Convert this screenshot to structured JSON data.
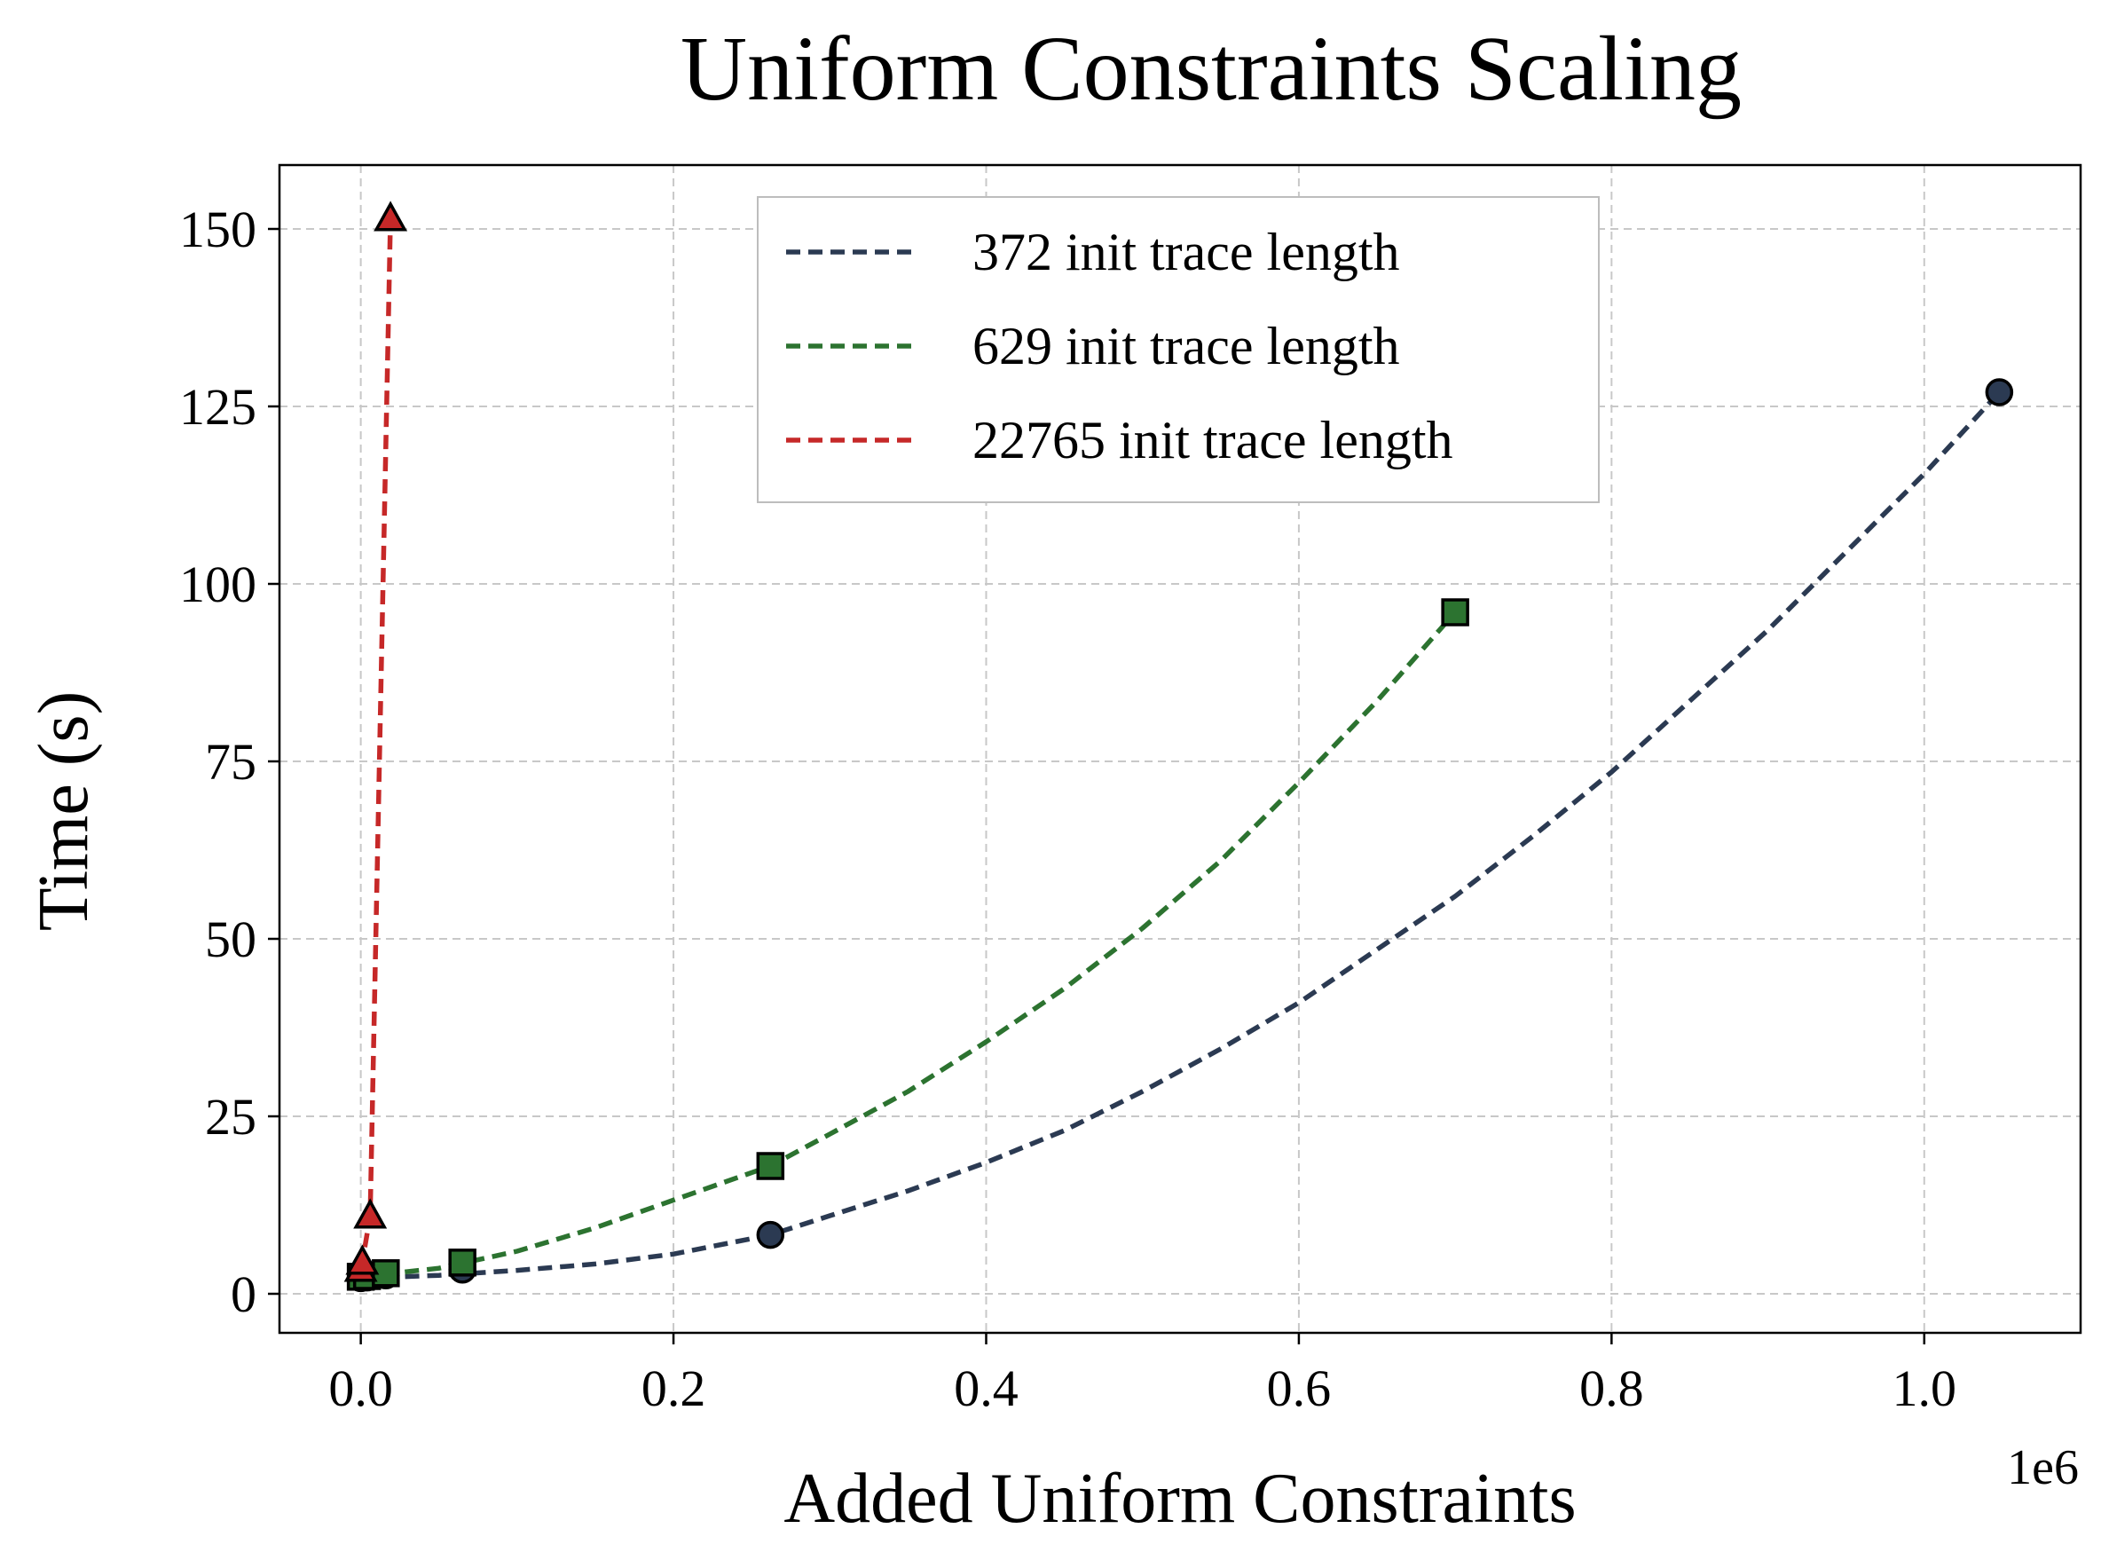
{
  "chart_data": {
    "type": "line",
    "title": "Uniform Constraints Scaling",
    "xlabel": "Added Uniform Constraints",
    "ylabel": "Time (s)",
    "x_offset_label": "1e6",
    "xlim": [
      -0.052,
      1.1
    ],
    "ylim": [
      -5.5,
      159
    ],
    "xticks": [
      0.0,
      0.2,
      0.4,
      0.6,
      0.8,
      1.0
    ],
    "xtick_labels": [
      "0.0",
      "0.2",
      "0.4",
      "0.6",
      "0.8",
      "1.0"
    ],
    "yticks": [
      0,
      25,
      50,
      75,
      100,
      125,
      150
    ],
    "ytick_labels": [
      "0",
      "25",
      "50",
      "75",
      "100",
      "125",
      "150"
    ],
    "grid": true,
    "legend_position": "top-center",
    "series": [
      {
        "name": "372 init trace length",
        "color": "#2b3a52",
        "marker": "circle",
        "points": [
          {
            "x": 0.0,
            "y": 2.2
          },
          {
            "x": 0.004,
            "y": 2.3
          },
          {
            "x": 0.016,
            "y": 2.6
          },
          {
            "x": 0.065,
            "y": 3.4
          },
          {
            "x": 0.262,
            "y": 8.3
          },
          {
            "x": 1.048,
            "y": 127
          }
        ],
        "curve": [
          {
            "x": 0.0,
            "y": 2.2
          },
          {
            "x": 0.05,
            "y": 2.6
          },
          {
            "x": 0.1,
            "y": 3.3
          },
          {
            "x": 0.15,
            "y": 4.2
          },
          {
            "x": 0.2,
            "y": 5.6
          },
          {
            "x": 0.262,
            "y": 8.3
          },
          {
            "x": 0.3,
            "y": 11
          },
          {
            "x": 0.35,
            "y": 14.5
          },
          {
            "x": 0.4,
            "y": 18.5
          },
          {
            "x": 0.45,
            "y": 23
          },
          {
            "x": 0.5,
            "y": 28.5
          },
          {
            "x": 0.55,
            "y": 34.5
          },
          {
            "x": 0.6,
            "y": 41
          },
          {
            "x": 0.65,
            "y": 48.5
          },
          {
            "x": 0.7,
            "y": 56
          },
          {
            "x": 0.75,
            "y": 64.5
          },
          {
            "x": 0.8,
            "y": 73.5
          },
          {
            "x": 0.85,
            "y": 83.5
          },
          {
            "x": 0.9,
            "y": 93.5
          },
          {
            "x": 0.95,
            "y": 104.5
          },
          {
            "x": 1.0,
            "y": 115.5
          },
          {
            "x": 1.048,
            "y": 127
          }
        ]
      },
      {
        "name": "629 init trace length",
        "color": "#2c7330",
        "marker": "square",
        "points": [
          {
            "x": 0.0,
            "y": 2.4
          },
          {
            "x": 0.004,
            "y": 2.5
          },
          {
            "x": 0.016,
            "y": 2.9
          },
          {
            "x": 0.065,
            "y": 4.4
          },
          {
            "x": 0.262,
            "y": 18
          },
          {
            "x": 0.7,
            "y": 96
          }
        ],
        "curve": [
          {
            "x": 0.0,
            "y": 2.4
          },
          {
            "x": 0.05,
            "y": 3.6
          },
          {
            "x": 0.1,
            "y": 6
          },
          {
            "x": 0.15,
            "y": 9.3
          },
          {
            "x": 0.2,
            "y": 13.2
          },
          {
            "x": 0.262,
            "y": 18
          },
          {
            "x": 0.3,
            "y": 22.5
          },
          {
            "x": 0.35,
            "y": 28.5
          },
          {
            "x": 0.4,
            "y": 35.5
          },
          {
            "x": 0.45,
            "y": 43
          },
          {
            "x": 0.5,
            "y": 51.5
          },
          {
            "x": 0.55,
            "y": 61
          },
          {
            "x": 0.6,
            "y": 72
          },
          {
            "x": 0.65,
            "y": 83.5
          },
          {
            "x": 0.7,
            "y": 96
          }
        ]
      },
      {
        "name": "22765 init trace length",
        "color": "#c62828",
        "marker": "triangle",
        "points": [
          {
            "x": 0.0,
            "y": 3.5
          },
          {
            "x": 0.001,
            "y": 4.5
          },
          {
            "x": 0.006,
            "y": 11
          },
          {
            "x": 0.019,
            "y": 151.5
          }
        ],
        "curve": [
          {
            "x": 0.0,
            "y": 3.5
          },
          {
            "x": 0.001,
            "y": 4.5
          },
          {
            "x": 0.006,
            "y": 11
          },
          {
            "x": 0.019,
            "y": 151.5
          }
        ]
      }
    ]
  }
}
